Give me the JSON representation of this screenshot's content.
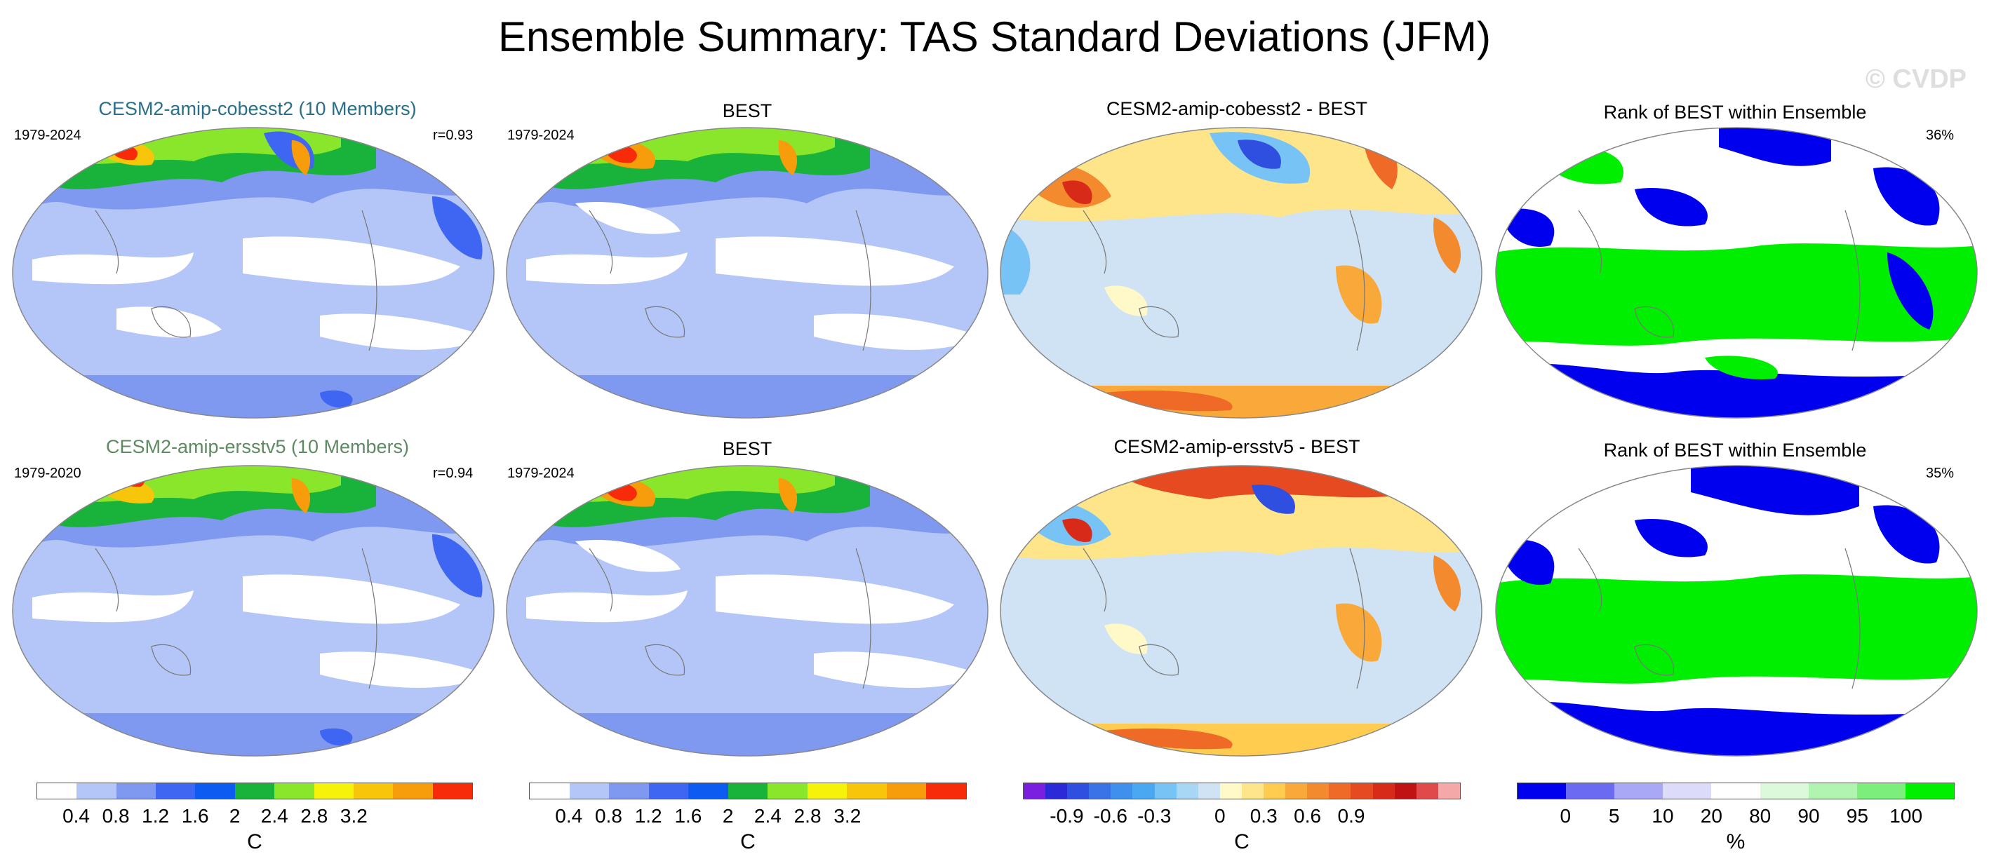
{
  "header": {
    "title": "Ensemble Summary: TAS Standard Deviations (JFM)",
    "watermark": "© CVDP"
  },
  "rows": [
    {
      "model": {
        "title": "CESM2-amip-cobesst2 (10 Members)",
        "title_color": "#2a6f8a",
        "years": "1979-2024",
        "corr": "r=0.93"
      },
      "obs": {
        "title": "BEST",
        "years": "1979-2024"
      },
      "diff": {
        "title": "CESM2-amip-cobesst2 - BEST"
      },
      "rank": {
        "title": "Rank of BEST within Ensemble",
        "pct": "36%"
      }
    },
    {
      "model": {
        "title": "CESM2-amip-ersstv5 (10 Members)",
        "title_color": "#5e8a62",
        "years": "1979-2020",
        "corr": "r=0.94"
      },
      "obs": {
        "title": "BEST",
        "years": "1979-2024"
      },
      "diff": {
        "title": "CESM2-amip-ersstv5 - BEST"
      },
      "rank": {
        "title": "Rank of BEST within Ensemble",
        "pct": "35%"
      }
    }
  ],
  "colorbars": {
    "std": {
      "unit": "C",
      "ticks": [
        "0.4",
        "0.8",
        "1.2",
        "1.6",
        "2",
        "2.4",
        "2.8",
        "3.2"
      ],
      "colors": [
        "#ffffff",
        "#b4c6f8",
        "#7f98f0",
        "#3f66f2",
        "#0d5bf0",
        "#19b23a",
        "#8ae62a",
        "#f7f20a",
        "#f7c60a",
        "#f79c0a",
        "#f72a0a"
      ]
    },
    "diff": {
      "unit": "C",
      "ticks": [
        "-0.9",
        "-0.6",
        "-0.3",
        "0",
        "0.3",
        "0.6",
        "0.9"
      ],
      "colors": [
        "#7a1fe0",
        "#2a2ad8",
        "#2f4fe0",
        "#3a72e8",
        "#3f8fee",
        "#4aa8f2",
        "#78c3f5",
        "#a8d6f5",
        "#cfe3f5",
        "#fff8c8",
        "#ffe58a",
        "#ffcc50",
        "#f9a83a",
        "#f48a2e",
        "#ee6a26",
        "#e64a20",
        "#d82a18",
        "#c01212",
        "#e04a4a",
        "#f5a8a8"
      ]
    },
    "rank": {
      "unit": "%",
      "ticks": [
        "0",
        "5",
        "10",
        "20",
        "80",
        "90",
        "95",
        "100"
      ],
      "colors": [
        "#0000ee",
        "#6a6af2",
        "#a8a8f6",
        "#dcdcfa",
        "#ffffff",
        "#dcf9dc",
        "#b0f4b0",
        "#7cee7c",
        "#00ee00"
      ]
    }
  }
}
